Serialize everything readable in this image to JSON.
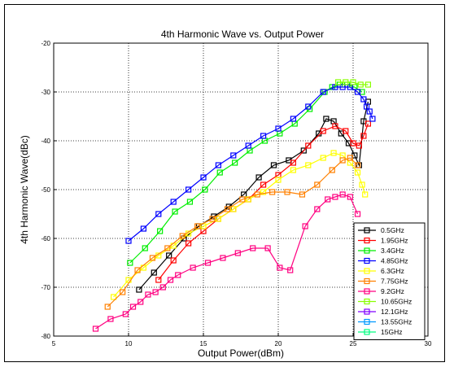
{
  "chart_data": {
    "type": "line",
    "title": "4th Harmonic Wave vs. Output Power",
    "xlabel": "Output Power(dBm)",
    "ylabel": "4th Harmonic Wave(dBc)",
    "xlim": [
      5,
      30
    ],
    "ylim": [
      -80,
      -20
    ],
    "xticks": [
      5,
      10,
      15,
      20,
      25,
      30
    ],
    "yticks": [
      -80,
      -70,
      -60,
      -50,
      -40,
      -30,
      -20
    ],
    "xtick_labels": [
      "5",
      "10",
      "15",
      "20",
      "25",
      "30"
    ],
    "ytick_labels": [
      "-80",
      "-70",
      "-60",
      "-50",
      "-40",
      "-30",
      "-20"
    ],
    "grid": true,
    "marker": "square",
    "legend_position": "lower-right",
    "series": [
      {
        "name": "0.5GHz",
        "color": "#000000",
        "x": [
          10.7,
          11.7,
          12.7,
          13.7,
          14.7,
          15.7,
          16.7,
          17.7,
          18.7,
          19.7,
          20.7,
          21.7,
          22.7,
          23.2,
          23.7,
          24.2,
          24.7,
          25.1,
          25.4,
          25.7,
          26.0
        ],
        "y": [
          -70.5,
          -67.0,
          -63.5,
          -60.0,
          -57.5,
          -55.5,
          -53.5,
          -51.0,
          -47.5,
          -45.0,
          -44.0,
          -42.0,
          -38.5,
          -35.5,
          -36.0,
          -38.5,
          -40.5,
          -43.0,
          -45.0,
          -36.0,
          -32.0
        ]
      },
      {
        "name": "1.95GHz",
        "color": "#ff0000",
        "x": [
          12.0,
          13.0,
          14.0,
          15.0,
          16.0,
          17.0,
          18.0,
          19.0,
          20.0,
          21.0,
          22.0,
          23.0,
          23.8,
          24.5,
          25.0,
          25.4,
          25.7,
          26.0
        ],
        "y": [
          -68.5,
          -64.5,
          -61.0,
          -58.5,
          -56.0,
          -54.0,
          -52.0,
          -49.0,
          -47.0,
          -44.5,
          -41.0,
          -38.0,
          -37.0,
          -38.0,
          -40.5,
          -41.0,
          -39.0,
          -36.5
        ]
      },
      {
        "name": "3.4GHz",
        "color": "#00ee00",
        "x": [
          10.1,
          11.1,
          12.1,
          13.1,
          14.1,
          15.1,
          16.1,
          17.1,
          18.1,
          19.1,
          20.1,
          21.1,
          22.1,
          23.1,
          23.6,
          24.1,
          24.6,
          25.1,
          25.6
        ],
        "y": [
          -65.0,
          -62.0,
          -58.5,
          -54.5,
          -52.5,
          -50.0,
          -46.5,
          -44.5,
          -42.0,
          -40.0,
          -38.5,
          -36.5,
          -33.5,
          -30.0,
          -29.0,
          -28.5,
          -28.5,
          -29.0,
          -30.0
        ]
      },
      {
        "name": "4.85GHz",
        "color": "#0000ff",
        "x": [
          10.0,
          11.0,
          12.0,
          13.0,
          14.0,
          15.0,
          16.0,
          17.0,
          18.0,
          19.0,
          20.0,
          21.0,
          22.0,
          23.0,
          23.8,
          24.3,
          24.8,
          25.3,
          25.7,
          25.9,
          26.1,
          26.3
        ],
        "y": [
          -60.5,
          -58.0,
          -55.0,
          -52.5,
          -50.0,
          -47.5,
          -45.0,
          -43.0,
          -41.0,
          -39.0,
          -37.5,
          -35.5,
          -33.0,
          -30.0,
          -29.0,
          -29.0,
          -29.0,
          -30.0,
          -31.5,
          -33.0,
          -34.0,
          -35.5
        ]
      },
      {
        "name": "6.3GHz",
        "color": "#ffff00",
        "x": [
          9.0,
          10.0,
          11.0,
          12.0,
          13.0,
          14.0,
          15.0,
          16.0,
          17.0,
          18.0,
          19.0,
          20.0,
          21.0,
          22.0,
          23.0,
          23.7,
          24.3,
          24.8,
          25.3,
          25.6,
          25.8
        ],
        "y": [
          -72.0,
          -68.5,
          -66.0,
          -63.5,
          -61.5,
          -59.0,
          -57.5,
          -56.0,
          -54.0,
          -52.0,
          -50.5,
          -48.0,
          -46.0,
          -45.0,
          -43.5,
          -42.5,
          -43.0,
          -44.5,
          -46.5,
          -49.0,
          -51.0
        ]
      },
      {
        "name": "7.75GHz",
        "color": "#ff8000",
        "x": [
          8.6,
          9.6,
          10.6,
          11.6,
          12.6,
          13.6,
          14.6,
          15.6,
          16.6,
          17.6,
          18.6,
          19.6,
          20.6,
          21.6,
          22.6,
          23.6,
          24.3,
          24.8,
          25.3
        ],
        "y": [
          -74.0,
          -71.0,
          -66.5,
          -64.0,
          -62.0,
          -59.5,
          -57.5,
          -56.0,
          -54.0,
          -52.0,
          -51.0,
          -50.5,
          -50.5,
          -51.0,
          -49.0,
          -46.0,
          -44.0,
          -43.5,
          -45.0
        ]
      },
      {
        "name": "9.2GHz",
        "color": "#ff0080",
        "x": [
          7.8,
          8.8,
          9.8,
          10.3,
          10.8,
          11.3,
          11.8,
          12.3,
          12.8,
          13.3,
          14.3,
          15.3,
          16.3,
          17.3,
          18.3,
          19.3,
          20.1,
          20.8,
          21.8,
          22.6,
          23.3,
          23.8,
          24.3,
          24.8,
          25.3
        ],
        "y": [
          -78.5,
          -76.5,
          -75.5,
          -74.0,
          -73.0,
          -71.5,
          -71.0,
          -70.0,
          -68.5,
          -67.5,
          -66.0,
          -65.0,
          -64.0,
          -63.0,
          -62.0,
          -62.0,
          -66.0,
          -66.5,
          -57.5,
          -54.0,
          -52.0,
          -51.5,
          -51.0,
          -51.5,
          -55.0
        ]
      },
      {
        "name": "10.65GHz",
        "color": "#88ff00",
        "x": [
          24.0,
          24.5,
          25.0,
          25.5,
          26.0
        ],
        "y": [
          -28.0,
          -28.0,
          -28.0,
          -28.5,
          -28.5
        ]
      },
      {
        "name": "12.1GHz",
        "color": "#8000ff",
        "x": [],
        "y": []
      },
      {
        "name": "13.55GHz",
        "color": "#0099ff",
        "x": [],
        "y": []
      },
      {
        "name": "15GHz",
        "color": "#00ff80",
        "x": [],
        "y": []
      }
    ]
  }
}
